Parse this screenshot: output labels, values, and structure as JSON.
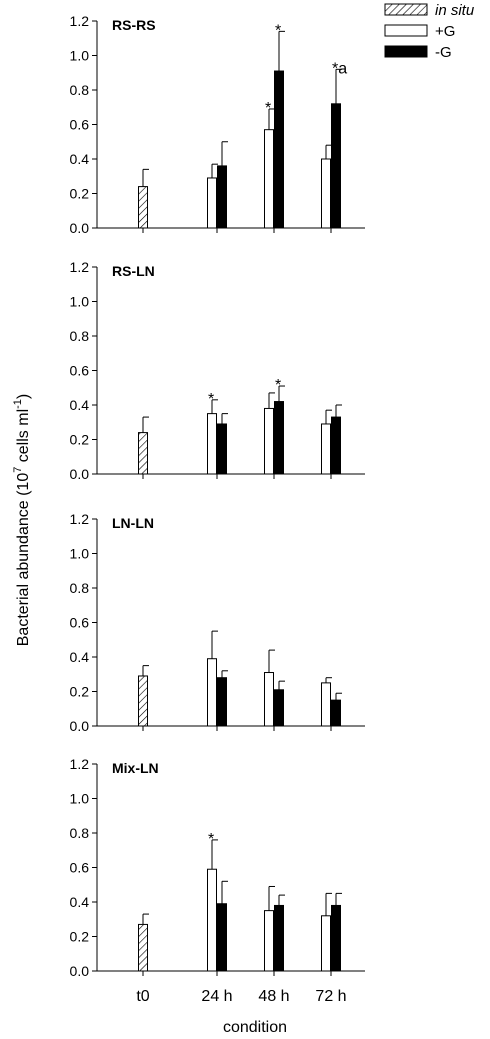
{
  "chart_data": {
    "type": "bar",
    "ylabel": "Bacterial abundance (10",
    "ylabel_exponent": "7",
    "ylabel_suffix": " cells ml",
    "ylabel_suffix_exponent": "-1",
    "ylabel_close": ")",
    "xlabel": "condition",
    "categories": [
      "t0",
      "24 h",
      "48 h",
      "72 h"
    ],
    "ylim": [
      0,
      1.2
    ],
    "yticks": [
      "0.0",
      "0.2",
      "0.4",
      "0.6",
      "0.8",
      "1.0",
      "1.2"
    ],
    "legend": {
      "position": "top-right",
      "entries": [
        {
          "key": "insitu",
          "label": "in situ",
          "italic": true,
          "fill": "hatched"
        },
        {
          "key": "plusG",
          "label": "+G",
          "fill": "#ffffff"
        },
        {
          "key": "minusG",
          "label": "-G",
          "fill": "#000000"
        }
      ]
    },
    "panels": [
      {
        "title": "RS-RS",
        "bars": [
          {
            "category": "t0",
            "series": "insitu",
            "value": 0.24,
            "err": 0.1,
            "annotation": ""
          },
          {
            "category": "24 h",
            "series": "plusG",
            "value": 0.29,
            "err": 0.08,
            "annotation": ""
          },
          {
            "category": "24 h",
            "series": "minusG",
            "value": 0.36,
            "err": 0.14,
            "annotation": ""
          },
          {
            "category": "48 h",
            "series": "plusG",
            "value": 0.57,
            "err": 0.12,
            "annotation": "*"
          },
          {
            "category": "48 h",
            "series": "minusG",
            "value": 0.91,
            "err": 0.23,
            "annotation": "*"
          },
          {
            "category": "72 h",
            "series": "plusG",
            "value": 0.4,
            "err": 0.08,
            "annotation": ""
          },
          {
            "category": "72 h",
            "series": "minusG",
            "value": 0.72,
            "err": 0.2,
            "annotation": "*a"
          }
        ]
      },
      {
        "title": "RS-LN",
        "bars": [
          {
            "category": "t0",
            "series": "insitu",
            "value": 0.24,
            "err": 0.09,
            "annotation": ""
          },
          {
            "category": "24 h",
            "series": "plusG",
            "value": 0.35,
            "err": 0.08,
            "annotation": "*"
          },
          {
            "category": "24 h",
            "series": "minusG",
            "value": 0.29,
            "err": 0.06,
            "annotation": ""
          },
          {
            "category": "48 h",
            "series": "plusG",
            "value": 0.38,
            "err": 0.09,
            "annotation": ""
          },
          {
            "category": "48 h",
            "series": "minusG",
            "value": 0.42,
            "err": 0.09,
            "annotation": "*"
          },
          {
            "category": "72 h",
            "series": "plusG",
            "value": 0.29,
            "err": 0.08,
            "annotation": ""
          },
          {
            "category": "72 h",
            "series": "minusG",
            "value": 0.33,
            "err": 0.07,
            "annotation": ""
          }
        ]
      },
      {
        "title": "LN-LN",
        "bars": [
          {
            "category": "t0",
            "series": "insitu",
            "value": 0.29,
            "err": 0.06,
            "annotation": ""
          },
          {
            "category": "24 h",
            "series": "plusG",
            "value": 0.39,
            "err": 0.16,
            "annotation": ""
          },
          {
            "category": "24 h",
            "series": "minusG",
            "value": 0.28,
            "err": 0.04,
            "annotation": ""
          },
          {
            "category": "48 h",
            "series": "plusG",
            "value": 0.31,
            "err": 0.13,
            "annotation": ""
          },
          {
            "category": "48 h",
            "series": "minusG",
            "value": 0.21,
            "err": 0.05,
            "annotation": ""
          },
          {
            "category": "72 h",
            "series": "plusG",
            "value": 0.25,
            "err": 0.03,
            "annotation": ""
          },
          {
            "category": "72 h",
            "series": "minusG",
            "value": 0.15,
            "err": 0.04,
            "annotation": ""
          }
        ]
      },
      {
        "title": "Mix-LN",
        "bars": [
          {
            "category": "t0",
            "series": "insitu",
            "value": 0.27,
            "err": 0.06,
            "annotation": ""
          },
          {
            "category": "24 h",
            "series": "plusG",
            "value": 0.59,
            "err": 0.17,
            "annotation": "*"
          },
          {
            "category": "24 h",
            "series": "minusG",
            "value": 0.39,
            "err": 0.13,
            "annotation": ""
          },
          {
            "category": "48 h",
            "series": "plusG",
            "value": 0.35,
            "err": 0.14,
            "annotation": ""
          },
          {
            "category": "48 h",
            "series": "minusG",
            "value": 0.38,
            "err": 0.06,
            "annotation": ""
          },
          {
            "category": "72 h",
            "series": "plusG",
            "value": 0.32,
            "err": 0.13,
            "annotation": ""
          },
          {
            "category": "72 h",
            "series": "minusG",
            "value": 0.38,
            "err": 0.07,
            "annotation": ""
          }
        ]
      }
    ]
  }
}
